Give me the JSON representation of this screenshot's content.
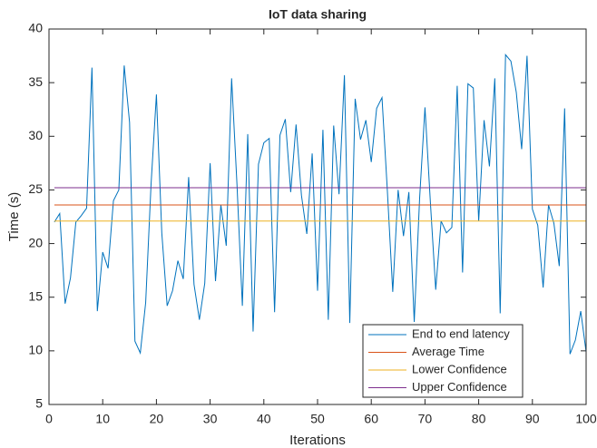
{
  "chart_data": {
    "type": "line",
    "title": "IoT data sharing",
    "x_label": "Iterations",
    "y_label": "Time (s)",
    "x": [
      1,
      2,
      3,
      4,
      5,
      6,
      7,
      8,
      9,
      10,
      11,
      12,
      13,
      14,
      15,
      16,
      17,
      18,
      19,
      20,
      21,
      22,
      23,
      24,
      25,
      26,
      27,
      28,
      29,
      30,
      31,
      32,
      33,
      34,
      35,
      36,
      37,
      38,
      39,
      40,
      41,
      42,
      43,
      44,
      45,
      46,
      47,
      48,
      49,
      50,
      51,
      52,
      53,
      54,
      55,
      56,
      57,
      58,
      59,
      60,
      61,
      62,
      63,
      64,
      65,
      66,
      67,
      68,
      69,
      70,
      71,
      72,
      73,
      74,
      75,
      76,
      77,
      78,
      79,
      80,
      81,
      82,
      83,
      84,
      85,
      86,
      87,
      88,
      89,
      90,
      91,
      92,
      93,
      94,
      95,
      96,
      97,
      98,
      99,
      100
    ],
    "series": [
      {
        "name": "End to end latency",
        "color": "#0072bd",
        "values": [
          22.0,
          22.8,
          14.4,
          16.8,
          22.0,
          22.6,
          23.3,
          36.4,
          13.7,
          19.2,
          17.7,
          24.0,
          25.0,
          36.6,
          31.3,
          10.9,
          9.8,
          14.5,
          25.5,
          33.9,
          21.0,
          14.2,
          15.6,
          18.4,
          16.7,
          26.2,
          16.2,
          12.9,
          16.3,
          27.5,
          16.5,
          23.6,
          19.8,
          35.4,
          25.5,
          14.2,
          30.2,
          11.8,
          27.4,
          29.4,
          29.8,
          13.6,
          30.1,
          31.6,
          24.8,
          31.1,
          24.5,
          20.9,
          28.4,
          15.6,
          30.6,
          12.9,
          31.0,
          24.6,
          35.7,
          12.6,
          33.5,
          29.7,
          31.5,
          27.6,
          32.6,
          33.6,
          24.9,
          15.5,
          25.0,
          20.7,
          24.8,
          12.7,
          24.2,
          32.7,
          23.9,
          15.7,
          22.1,
          21.0,
          21.5,
          34.7,
          17.3,
          34.9,
          34.5,
          22.1,
          31.5,
          27.2,
          35.4,
          13.5,
          37.6,
          37.0,
          34.1,
          28.8,
          37.5,
          23.2,
          21.7,
          15.9,
          23.6,
          21.9,
          17.9,
          32.6,
          9.7,
          11.0,
          13.7,
          9.9
        ]
      },
      {
        "name": "Average Time",
        "color": "#d95319",
        "x": [
          1,
          100
        ],
        "values": [
          23.6,
          23.6
        ]
      },
      {
        "name": "Lower Confidence",
        "color": "#edb120",
        "x": [
          1,
          100
        ],
        "values": [
          22.1,
          22.1
        ]
      },
      {
        "name": "Upper Confidence",
        "color": "#7e2f8e",
        "x": [
          1,
          100
        ],
        "values": [
          25.2,
          25.2
        ]
      }
    ],
    "xlim": [
      0,
      100
    ],
    "xticks": [
      0,
      10,
      20,
      30,
      40,
      50,
      60,
      70,
      80,
      90,
      100
    ],
    "ylim": [
      5,
      40
    ],
    "yticks": [
      5,
      10,
      15,
      20,
      25,
      30,
      35,
      40
    ],
    "legend": "lower right"
  }
}
